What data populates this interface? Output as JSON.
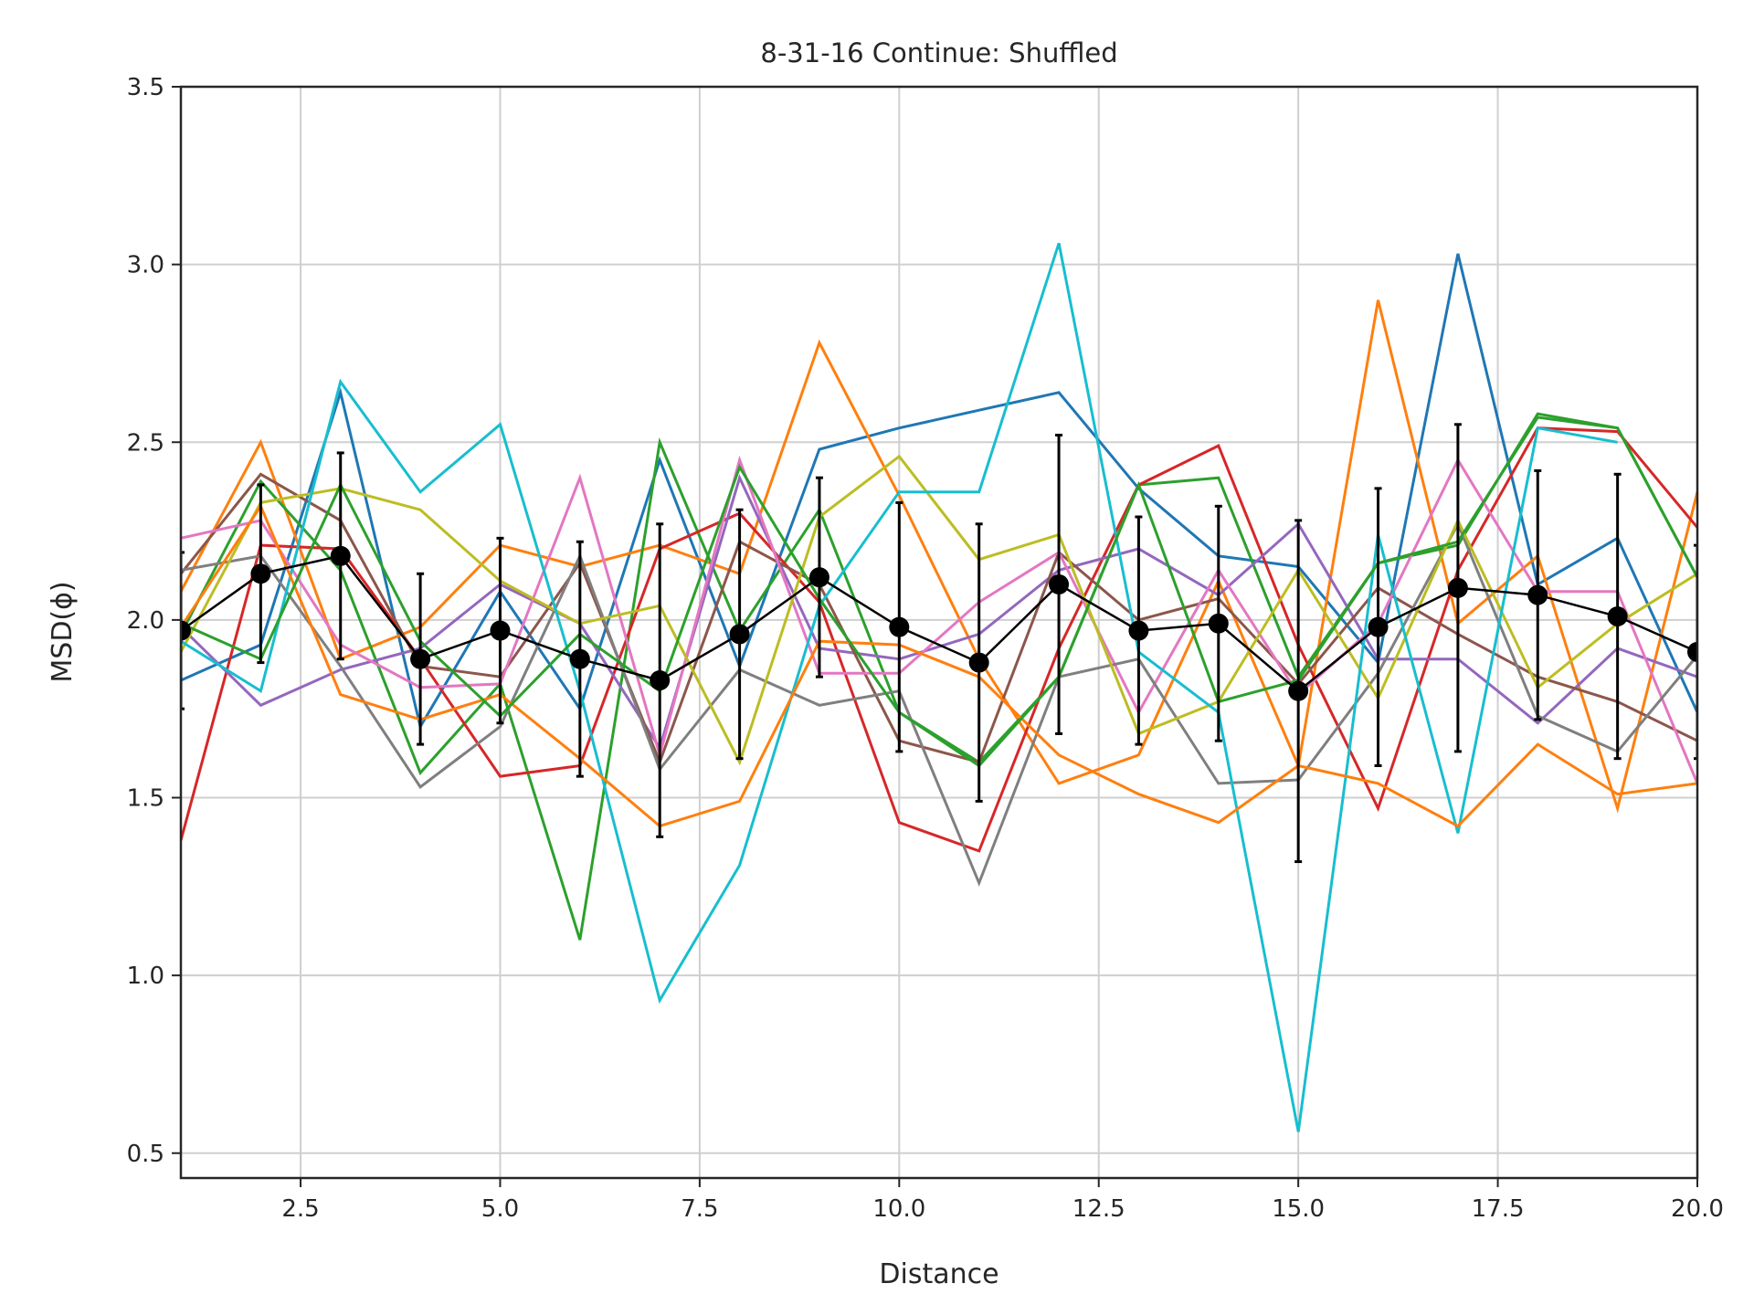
{
  "chart_data": {
    "type": "line",
    "title": "8-31-16 Continue: Shuffled",
    "xlabel": "Distance",
    "ylabel": "MSD(ϕ)",
    "xlim": [
      1,
      20
    ],
    "ylim": [
      0.43,
      3.5
    ],
    "grid": true,
    "legend": "none",
    "x": [
      1,
      2,
      3,
      4,
      5,
      6,
      7,
      8,
      9,
      10,
      11,
      12,
      13,
      14,
      15,
      16,
      17,
      18,
      19,
      20
    ],
    "xticks": [
      {
        "value": 2.5,
        "label": "2.5"
      },
      {
        "value": 5,
        "label": "5.0"
      },
      {
        "value": 7.5,
        "label": "7.5"
      },
      {
        "value": 10,
        "label": "10.0"
      },
      {
        "value": 12.5,
        "label": "12.5"
      },
      {
        "value": 15,
        "label": "15.0"
      },
      {
        "value": 17.5,
        "label": "17.5"
      },
      {
        "value": 20,
        "label": "20.0"
      }
    ],
    "yticks": [
      {
        "value": 0.5,
        "label": "0.5"
      },
      {
        "value": 1.0,
        "label": "1.0"
      },
      {
        "value": 1.5,
        "label": "1.5"
      },
      {
        "value": 2.0,
        "label": "2.0"
      },
      {
        "value": 2.5,
        "label": "2.5"
      },
      {
        "value": 3.0,
        "label": "3.0"
      },
      {
        "value": 3.5,
        "label": "3.5"
      }
    ],
    "series": [
      {
        "color": "#1f77b4",
        "values": [
          1.83,
          1.93,
          2.64,
          1.7,
          2.08,
          1.75,
          2.45,
          1.87,
          2.48,
          2.54,
          2.59,
          2.64,
          2.37,
          2.18,
          2.15,
          1.88,
          3.03,
          2.1,
          2.23,
          1.74
        ]
      },
      {
        "color": "#ff7f0e",
        "values": [
          2.08,
          2.5,
          1.89,
          1.98,
          2.21,
          2.15,
          2.21,
          2.13,
          2.78,
          2.35,
          1.89,
          1.54,
          1.62,
          2.11,
          1.59,
          2.9,
          1.99,
          2.18,
          1.47,
          2.36
        ]
      },
      {
        "color": "#2ca02c",
        "values": [
          1.96,
          2.39,
          2.14,
          1.57,
          1.82,
          1.1,
          2.5,
          1.97,
          2.31,
          1.74,
          1.6,
          1.84,
          2.38,
          2.4,
          1.84,
          2.16,
          2.21,
          2.58,
          2.54,
          2.12
        ]
      },
      {
        "color": "#d62728",
        "values": [
          1.38,
          2.21,
          2.2,
          1.89,
          1.56,
          1.59,
          2.2,
          2.3,
          2.05,
          1.43,
          1.35,
          1.92,
          2.38,
          2.49,
          1.93,
          1.47,
          2.14,
          2.54,
          2.53,
          2.26
        ]
      },
      {
        "color": "#9467bd",
        "values": [
          1.98,
          1.76,
          1.86,
          1.92,
          2.1,
          1.99,
          1.64,
          2.4,
          1.92,
          1.89,
          1.96,
          2.14,
          2.2,
          2.07,
          2.27,
          1.89,
          1.89,
          1.71,
          1.92,
          1.84
        ]
      },
      {
        "color": "#8c564b",
        "values": [
          2.13,
          2.41,
          2.28,
          1.87,
          1.84,
          2.16,
          1.6,
          2.22,
          2.1,
          1.66,
          1.6,
          2.19,
          2.0,
          2.06,
          1.82,
          2.09,
          1.96,
          1.84,
          1.77,
          1.66
        ]
      },
      {
        "color": "#e377c2",
        "values": [
          2.23,
          2.28,
          1.93,
          1.81,
          1.82,
          2.4,
          1.62,
          2.45,
          1.85,
          1.85,
          2.05,
          2.19,
          1.74,
          2.14,
          1.79,
          1.99,
          2.45,
          2.08,
          2.08,
          1.54
        ]
      },
      {
        "color": "#7f7f7f",
        "values": [
          2.14,
          2.18,
          1.87,
          1.53,
          1.7,
          2.18,
          1.58,
          1.86,
          1.76,
          1.8,
          1.26,
          1.84,
          1.89,
          1.54,
          1.55,
          1.85,
          2.27,
          1.73,
          1.63,
          1.9
        ]
      },
      {
        "color": "#bcbd22",
        "values": [
          1.91,
          2.33,
          2.37,
          2.31,
          2.11,
          1.99,
          2.04,
          1.6,
          2.29,
          2.46,
          2.17,
          2.24,
          1.68,
          1.77,
          2.14,
          1.78,
          2.28,
          1.81,
          1.99,
          2.13
        ]
      },
      {
        "color": "#17becf",
        "values": [
          1.94,
          1.8,
          2.67,
          2.36,
          2.55,
          1.8,
          0.93,
          1.31,
          2.04,
          2.36,
          2.36,
          3.06,
          1.91,
          1.74,
          0.56,
          2.24,
          1.4,
          2.54,
          2.5,
          null
        ]
      },
      {
        "color": "#ff7f0e",
        "values": [
          1.98,
          2.32,
          1.79,
          1.72,
          1.79,
          1.61,
          1.42,
          1.49,
          1.94,
          1.93,
          1.84,
          1.62,
          1.51,
          1.43,
          1.59,
          1.54,
          1.42,
          1.65,
          1.51,
          1.54
        ]
      },
      {
        "color": "#2ca02c",
        "values": [
          1.99,
          1.89,
          2.38,
          1.94,
          1.73,
          1.96,
          1.8,
          2.43,
          2.06,
          1.74,
          1.59,
          1.84,
          2.38,
          1.77,
          1.83,
          2.16,
          2.22,
          2.57,
          2.54,
          2.12
        ]
      }
    ],
    "mean": {
      "name": "mean",
      "values": [
        1.97,
        2.13,
        2.18,
        1.89,
        1.97,
        1.89,
        1.83,
        1.96,
        2.12,
        1.98,
        1.88,
        2.1,
        1.97,
        1.99,
        1.8,
        1.98,
        2.09,
        2.07,
        2.01,
        1.91
      ],
      "errors": [
        0.22,
        0.25,
        0.29,
        0.24,
        0.26,
        0.33,
        0.44,
        0.35,
        0.28,
        0.35,
        0.39,
        0.42,
        0.32,
        0.33,
        0.48,
        0.39,
        0.46,
        0.35,
        0.4,
        0.3
      ]
    }
  }
}
